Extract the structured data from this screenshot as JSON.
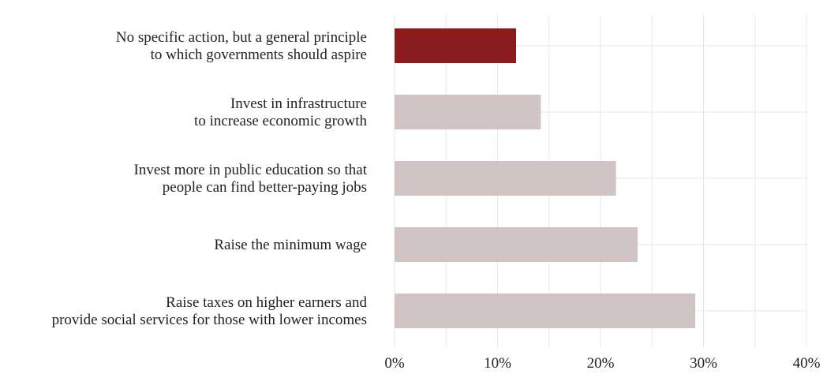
{
  "chart_data": {
    "type": "bar",
    "orientation": "horizontal",
    "categories": [
      [
        "No specific action, but a general principle",
        "to which governments should aspire"
      ],
      [
        "Invest in infrastructure",
        "to increase economic growth"
      ],
      [
        "Invest more in public education so that",
        "people can find better-paying jobs"
      ],
      [
        "Raise the minimum wage"
      ],
      [
        "Raise taxes on higher earners and",
        "provide social services for those with lower incomes"
      ]
    ],
    "values": [
      11.8,
      14.2,
      21.5,
      23.6,
      29.2
    ],
    "highlight_index": 0,
    "colors": {
      "highlight": "#8b1c1e",
      "default": "#d0c5c4",
      "grid": "#e8e8e8"
    },
    "xlim": [
      0,
      40
    ],
    "x_ticks": [
      0,
      10,
      20,
      30,
      40
    ],
    "x_tick_labels": [
      "0%",
      "10%",
      "20%",
      "30%",
      "40%"
    ],
    "grid": true,
    "legend": "none"
  }
}
